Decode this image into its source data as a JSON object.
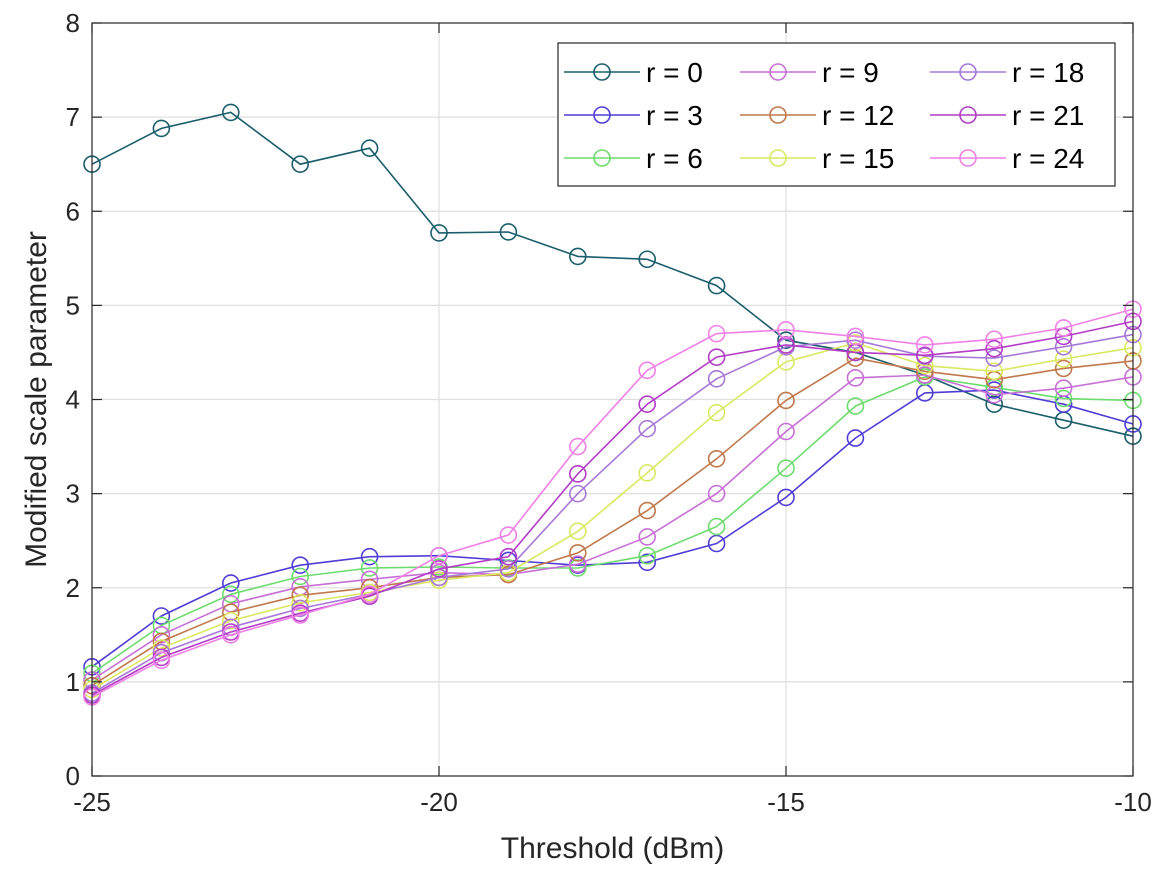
{
  "chart_data": {
    "type": "line",
    "title": "",
    "xlabel": "Threshold (dBm)",
    "ylabel": "Modified scale parameter",
    "xlim": [
      -25,
      -10
    ],
    "ylim": [
      0,
      8
    ],
    "xticks": [
      -25,
      -20,
      -15,
      -10
    ],
    "xtick_labels": [
      "-25",
      "-20",
      "-15",
      "-10"
    ],
    "yticks": [
      0,
      1,
      2,
      3,
      4,
      5,
      6,
      7,
      8
    ],
    "ytick_labels": [
      "0",
      "1",
      "2",
      "3",
      "4",
      "5",
      "6",
      "7",
      "8"
    ],
    "grid": true,
    "legend_position": "top-right",
    "marker": "circle",
    "x": [
      -25,
      -24,
      -23,
      -22,
      -21,
      -20,
      -19,
      -18,
      -17,
      -16,
      -15,
      -14,
      -13,
      -12,
      -11,
      -10
    ],
    "series": [
      {
        "name": "r = 0",
        "color": "#1b5e6b",
        "values": [
          6.5,
          6.88,
          7.05,
          6.5,
          6.67,
          5.77,
          5.78,
          5.52,
          5.49,
          5.21,
          4.63,
          4.5,
          4.26,
          3.95,
          3.78,
          3.61
        ]
      },
      {
        "name": "r = 3",
        "color": "#4f3dd6",
        "values": [
          1.16,
          1.7,
          2.05,
          2.24,
          2.33,
          2.34,
          2.29,
          2.24,
          2.27,
          2.47,
          2.96,
          3.59,
          4.07,
          4.1,
          3.95,
          3.74
        ]
      },
      {
        "name": "r = 6",
        "color": "#6ddc6d",
        "values": [
          1.09,
          1.6,
          1.93,
          2.12,
          2.21,
          2.22,
          2.21,
          2.21,
          2.34,
          2.65,
          3.27,
          3.93,
          4.24,
          4.13,
          4.01,
          3.99
        ]
      },
      {
        "name": "r = 9",
        "color": "#c76fd6",
        "values": [
          1.02,
          1.5,
          1.83,
          2.01,
          2.09,
          2.16,
          2.14,
          2.25,
          2.54,
          3.0,
          3.66,
          4.23,
          4.26,
          4.05,
          4.12,
          4.24
        ]
      },
      {
        "name": "r = 12",
        "color": "#c0784a",
        "values": [
          0.96,
          1.43,
          1.74,
          1.92,
          2.0,
          2.11,
          2.14,
          2.37,
          2.82,
          3.37,
          3.99,
          4.44,
          4.3,
          4.21,
          4.33,
          4.41
        ]
      },
      {
        "name": "r = 15",
        "color": "#dbe860",
        "values": [
          0.92,
          1.36,
          1.65,
          1.84,
          1.95,
          2.08,
          2.16,
          2.6,
          3.22,
          3.86,
          4.4,
          4.6,
          4.36,
          4.3,
          4.43,
          4.55
        ]
      },
      {
        "name": "r = 18",
        "color": "#a878d8",
        "values": [
          0.88,
          1.31,
          1.58,
          1.78,
          1.93,
          2.11,
          2.2,
          3.0,
          3.69,
          4.22,
          4.56,
          4.63,
          4.46,
          4.44,
          4.56,
          4.69
        ]
      },
      {
        "name": "r = 21",
        "color": "#b23cc6",
        "values": [
          0.86,
          1.26,
          1.53,
          1.73,
          1.91,
          2.2,
          2.33,
          3.21,
          3.95,
          4.45,
          4.58,
          4.5,
          4.47,
          4.54,
          4.67,
          4.83
        ]
      },
      {
        "name": "r = 24",
        "color": "#f07fe6",
        "values": [
          0.84,
          1.23,
          1.5,
          1.71,
          1.93,
          2.34,
          2.56,
          3.5,
          4.31,
          4.7,
          4.74,
          4.67,
          4.58,
          4.64,
          4.76,
          4.96
        ]
      }
    ]
  }
}
